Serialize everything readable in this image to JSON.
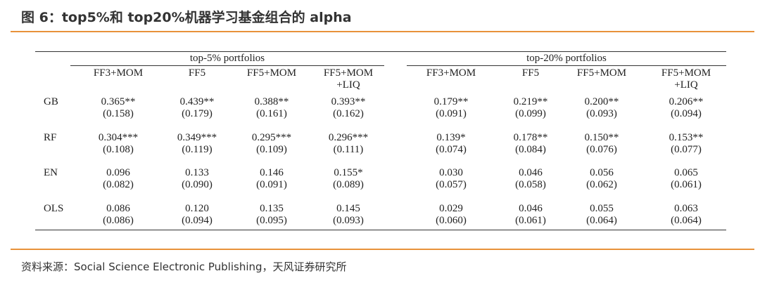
{
  "header": {
    "title": "图 6：top5%和 top20%机器学习基金组合的 alpha"
  },
  "table": {
    "groups": [
      "top-5% portfolios",
      "top-20% portfolios"
    ],
    "columns": [
      [
        "FF3+MOM"
      ],
      [
        "FF5"
      ],
      [
        "FF5+MOM"
      ],
      [
        "FF5+MOM",
        "+LIQ"
      ],
      [
        "FF3+MOM"
      ],
      [
        "FF5"
      ],
      [
        "FF5+MOM"
      ],
      [
        "FF5+MOM",
        "+LIQ"
      ]
    ],
    "rows": [
      {
        "label": "GB",
        "estimates": [
          "0.365**",
          "0.439**",
          "0.388**",
          "0.393**",
          "0.179**",
          "0.219**",
          "0.200**",
          "0.206**"
        ],
        "errors": [
          "(0.158)",
          "(0.179)",
          "(0.161)",
          "(0.162)",
          "(0.091)",
          "(0.099)",
          "(0.093)",
          "(0.094)"
        ]
      },
      {
        "label": "RF",
        "estimates": [
          "0.304***",
          "0.349***",
          "0.295***",
          "0.296***",
          "0.139*",
          "0.178**",
          "0.150**",
          "0.153**"
        ],
        "errors": [
          "(0.108)",
          "(0.119)",
          "(0.109)",
          "(0.111)",
          "(0.074)",
          "(0.084)",
          "(0.076)",
          "(0.077)"
        ]
      },
      {
        "label": "EN",
        "estimates": [
          "0.096",
          "0.133",
          "0.146",
          "0.155*",
          "0.030",
          "0.046",
          "0.056",
          "0.065"
        ],
        "errors": [
          "(0.082)",
          "(0.090)",
          "(0.091)",
          "(0.089)",
          "(0.057)",
          "(0.058)",
          "(0.062)",
          "(0.061)"
        ]
      },
      {
        "label": "OLS",
        "estimates": [
          "0.086",
          "0.120",
          "0.135",
          "0.145",
          "0.029",
          "0.046",
          "0.055",
          "0.063"
        ],
        "errors": [
          "(0.086)",
          "(0.094)",
          "(0.095)",
          "(0.093)",
          "(0.060)",
          "(0.061)",
          "(0.064)",
          "(0.064)"
        ]
      }
    ]
  },
  "footer": {
    "source": "资料来源：Social Science Electronic Publishing，天风证券研究所"
  }
}
